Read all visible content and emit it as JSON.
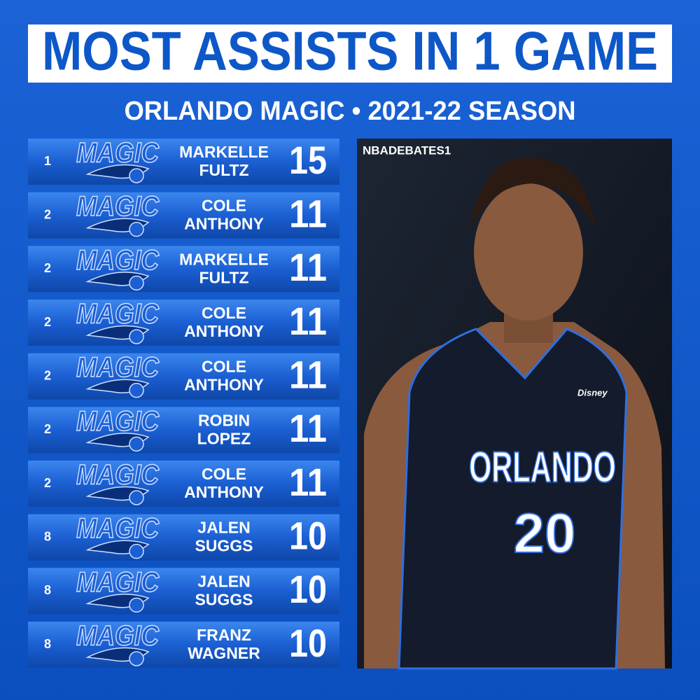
{
  "header": {
    "title": "MOST ASSISTS IN 1 GAME",
    "subtitle": "ORLANDO MAGIC • 2021-22 SEASON"
  },
  "logo_text": "MAGIC",
  "rows": [
    {
      "rank": "1",
      "first": "MARKELLE",
      "last": "FULTZ",
      "assists": "15"
    },
    {
      "rank": "2",
      "first": "COLE",
      "last": "ANTHONY",
      "assists": "11"
    },
    {
      "rank": "2",
      "first": "MARKELLE",
      "last": "FULTZ",
      "assists": "11"
    },
    {
      "rank": "2",
      "first": "COLE",
      "last": "ANTHONY",
      "assists": "11"
    },
    {
      "rank": "2",
      "first": "COLE",
      "last": "ANTHONY",
      "assists": "11"
    },
    {
      "rank": "2",
      "first": "ROBIN",
      "last": "LOPEZ",
      "assists": "11"
    },
    {
      "rank": "2",
      "first": "COLE",
      "last": "ANTHONY",
      "assists": "11"
    },
    {
      "rank": "8",
      "first": "JALEN",
      "last": "SUGGS",
      "assists": "10"
    },
    {
      "rank": "8",
      "first": "JALEN",
      "last": "SUGGS",
      "assists": "10"
    },
    {
      "rank": "8",
      "first": "FRANZ",
      "last": "WAGNER",
      "assists": "10"
    }
  ],
  "photo": {
    "credit": "NBADEBATES1",
    "jersey_city": "ORLANDO",
    "jersey_number": "20",
    "sponsor": "Disney"
  }
}
